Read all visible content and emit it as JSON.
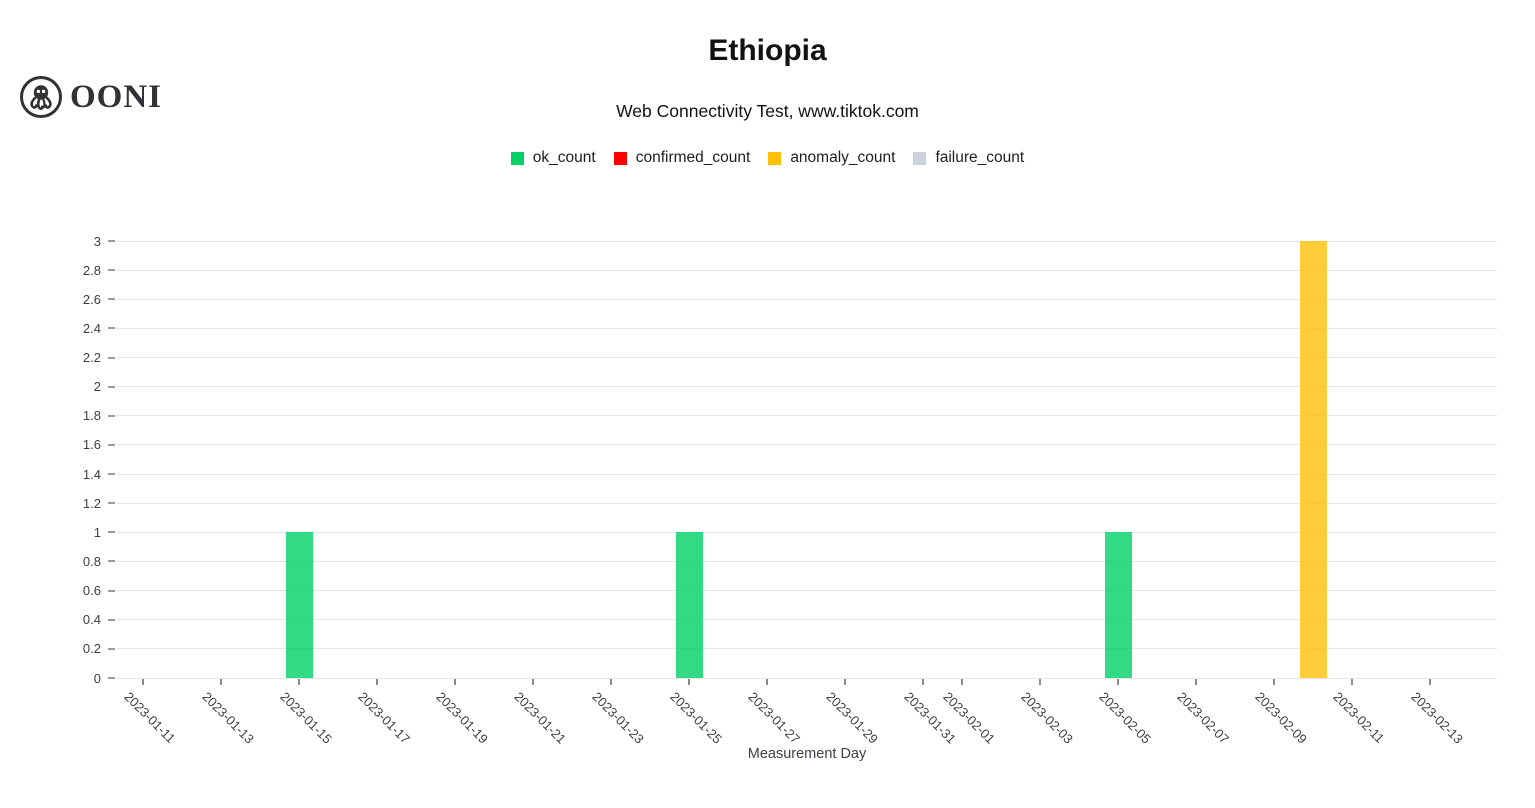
{
  "header": {
    "logo_text": "OONI",
    "title": "Ethiopia",
    "subtitle": "Web Connectivity Test, www.tiktok.com"
  },
  "chart_data": {
    "type": "bar",
    "title": "Ethiopia",
    "subtitle": "Web Connectivity Test, www.tiktok.com",
    "xlabel": "Measurement Day",
    "ylabel": "",
    "ylim": [
      0,
      3
    ],
    "ytick_step": 0.2,
    "grid": true,
    "legend_position": "top-center",
    "x_domain_start": "2023-01-11",
    "x_domain_end": "2023-02-14",
    "x_tick_labels": [
      "2023-01-11",
      "2023-01-13",
      "2023-01-15",
      "2023-01-17",
      "2023-01-19",
      "2023-01-21",
      "2023-01-23",
      "2023-01-25",
      "2023-01-27",
      "2023-01-29",
      "2023-01-31",
      "2023-02-01",
      "2023-02-03",
      "2023-02-05",
      "2023-02-07",
      "2023-02-09",
      "2023-02-11",
      "2023-02-13"
    ],
    "legend": [
      {
        "name": "ok_count",
        "color": "#00d166"
      },
      {
        "name": "confirmed_count",
        "color": "#ff0000"
      },
      {
        "name": "anomaly_count",
        "color": "#ffc107"
      },
      {
        "name": "failure_count",
        "color": "#ccd2da"
      }
    ],
    "bars": [
      {
        "date": "2023-01-15",
        "series": "ok_count",
        "value": 1
      },
      {
        "date": "2023-01-25",
        "series": "ok_count",
        "value": 1
      },
      {
        "date": "2023-02-05",
        "series": "ok_count",
        "value": 1
      },
      {
        "date": "2023-02-10",
        "series": "anomaly_count",
        "value": 3
      }
    ]
  }
}
